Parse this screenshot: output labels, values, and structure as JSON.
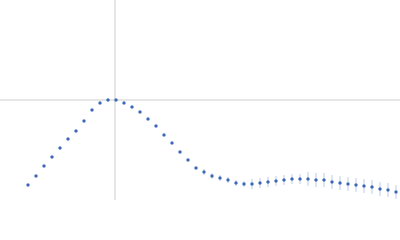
{
  "chart_data": {
    "type": "scatter",
    "xlim": [
      0,
      400
    ],
    "ylim": [
      0,
      200
    ],
    "reference_lines": {
      "x": 115,
      "y": 100,
      "color": "#cccccc"
    },
    "series": [
      {
        "color": "#3a66b8",
        "error_color": "#9fb5e0",
        "x": [
          28,
          36,
          44,
          52,
          60,
          68,
          76,
          84,
          92,
          100,
          108,
          116,
          124,
          132,
          140,
          148,
          156,
          164,
          172,
          180,
          188,
          196,
          204,
          212,
          220,
          228,
          236,
          244,
          252,
          260,
          268,
          276,
          284,
          292,
          300,
          308,
          316,
          324,
          332,
          340,
          348,
          356,
          364,
          372,
          380,
          388,
          396
        ],
        "values": [
          15,
          24,
          34,
          43,
          52,
          61,
          69,
          79,
          90,
          97,
          100,
          100,
          97,
          93,
          88,
          81,
          74,
          65,
          57,
          48,
          40,
          32,
          28,
          24,
          22,
          20,
          17,
          16,
          16,
          17,
          18,
          19,
          20,
          21,
          21,
          21,
          20,
          20,
          18,
          17,
          16,
          15,
          14,
          13,
          11,
          10,
          8
        ],
        "errors": [
          1,
          1,
          1,
          1,
          1,
          1,
          1,
          1,
          1,
          1,
          1,
          1,
          1,
          1,
          1,
          1,
          1,
          1,
          1,
          1,
          1,
          1,
          3,
          3,
          3,
          3,
          3,
          3,
          5,
          5,
          5,
          5,
          5,
          5,
          5,
          7,
          7,
          7,
          7,
          7,
          7,
          7,
          7,
          7,
          7,
          7,
          7
        ]
      }
    ]
  }
}
